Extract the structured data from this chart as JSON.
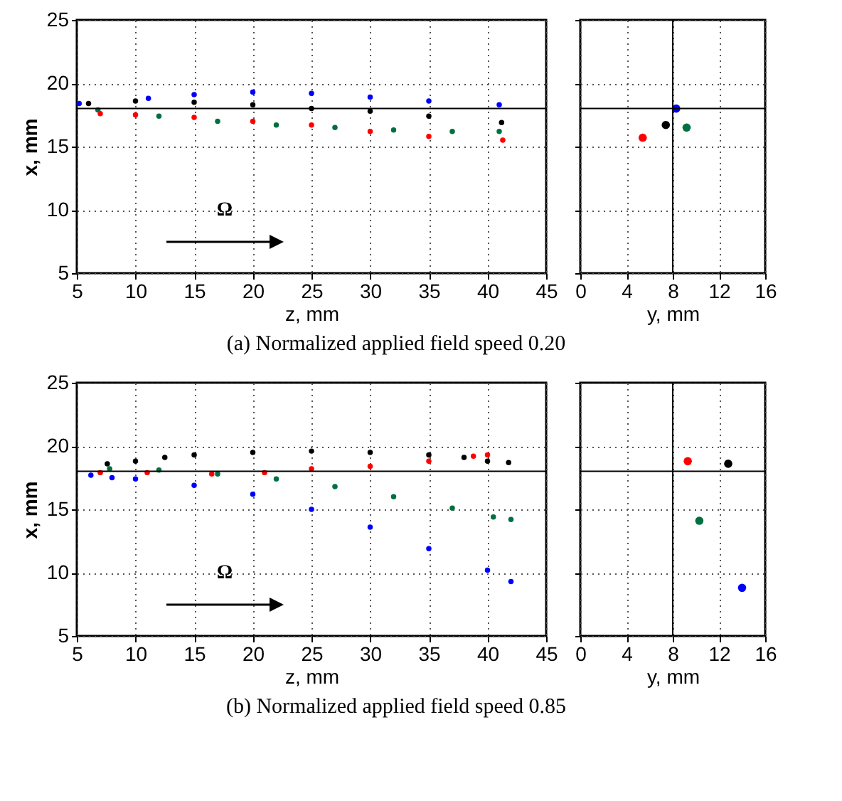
{
  "chart_data": [
    {
      "type": "scatter",
      "xlabel": "z, mm",
      "ylabel": "x, mm",
      "xlim": [
        5,
        45
      ],
      "ylim": [
        5,
        25
      ],
      "xticks": [
        5,
        10,
        15,
        20,
        25,
        30,
        35,
        40,
        45
      ],
      "yticks": [
        5,
        10,
        15,
        20,
        25
      ],
      "grid": true,
      "marker": "circle",
      "annotations": [
        "Ω",
        "(a)  Normalized applied field speed 0.20"
      ],
      "ref_lines": [
        {
          "axis": "y",
          "value": 18
        }
      ],
      "series": [
        {
          "color": "#0000ff",
          "x": [
            5.2,
            11.1,
            15,
            20,
            25,
            30,
            35,
            41
          ],
          "values": [
            18.4,
            18.8,
            19.1,
            19.3,
            19.2,
            18.9,
            18.6,
            18.3
          ]
        },
        {
          "color": "#000000",
          "x": [
            6,
            10,
            15,
            20,
            25,
            30,
            35,
            41.2
          ],
          "values": [
            18.4,
            18.6,
            18.5,
            18.3,
            18.0,
            17.8,
            17.4,
            16.9
          ]
        },
        {
          "color": "#007040",
          "x": [
            6.8,
            12,
            17,
            22,
            27,
            32,
            37,
            41
          ],
          "values": [
            17.9,
            17.4,
            17.0,
            16.7,
            16.5,
            16.3,
            16.2,
            16.2
          ]
        },
        {
          "color": "#ff0000",
          "x": [
            7,
            10,
            15,
            20,
            25,
            30,
            35,
            41.3
          ],
          "values": [
            17.6,
            17.5,
            17.3,
            17.0,
            16.7,
            16.2,
            15.8,
            15.5
          ]
        }
      ]
    },
    {
      "type": "scatter",
      "xlabel": "y, mm",
      "xlim": [
        0,
        16
      ],
      "ylim": [
        5,
        25
      ],
      "xticks": [
        0,
        4,
        8,
        12,
        16
      ],
      "yticks": [
        5,
        10,
        15,
        20,
        25
      ],
      "tick_labels": "x",
      "grid": true,
      "marker": "circle",
      "ref_lines": [
        {
          "axis": "y",
          "value": 18
        },
        {
          "axis": "x",
          "value": 8
        }
      ],
      "series": [
        {
          "color": "#0000ff",
          "x": [
            8.3
          ],
          "values": [
            18.0
          ]
        },
        {
          "color": "#000000",
          "x": [
            7.4
          ],
          "values": [
            16.7
          ]
        },
        {
          "color": "#007040",
          "x": [
            9.2
          ],
          "values": [
            16.5
          ]
        },
        {
          "color": "#ff0000",
          "x": [
            5.4
          ],
          "values": [
            15.7
          ]
        }
      ]
    },
    {
      "type": "scatter",
      "xlabel": "z, mm",
      "ylabel": "x, mm",
      "xlim": [
        5,
        45
      ],
      "ylim": [
        5,
        25
      ],
      "xticks": [
        5,
        10,
        15,
        20,
        25,
        30,
        35,
        40,
        45
      ],
      "yticks": [
        5,
        10,
        15,
        20,
        25
      ],
      "grid": true,
      "marker": "circle",
      "annotations": [
        "Ω",
        "(b)  Normalized applied field speed 0.85"
      ],
      "ref_lines": [
        {
          "axis": "y",
          "value": 18
        }
      ],
      "series": [
        {
          "color": "#000000",
          "x": [
            7.6,
            10,
            12.5,
            15,
            20,
            25,
            30,
            35,
            38,
            40,
            41.8
          ],
          "values": [
            18.6,
            18.8,
            19.1,
            19.3,
            19.5,
            19.6,
            19.5,
            19.3,
            19.1,
            18.8,
            18.7
          ]
        },
        {
          "color": "#ff0000",
          "x": [
            7,
            11,
            16.5,
            21,
            25,
            30,
            35,
            38.8,
            40
          ],
          "values": [
            17.9,
            17.9,
            17.8,
            17.9,
            18.2,
            18.4,
            18.8,
            19.2,
            19.3
          ]
        },
        {
          "color": "#007040",
          "x": [
            7.8,
            12,
            17,
            22,
            27,
            32,
            37,
            40.5,
            42
          ],
          "values": [
            18.2,
            18.1,
            17.8,
            17.4,
            16.8,
            16.0,
            15.1,
            14.4,
            14.2
          ]
        },
        {
          "color": "#0000ff",
          "x": [
            6.2,
            8,
            10,
            15,
            20,
            25,
            30,
            35,
            40,
            42
          ],
          "values": [
            17.7,
            17.5,
            17.4,
            16.9,
            16.2,
            15.0,
            13.6,
            11.9,
            10.2,
            9.3
          ]
        }
      ]
    },
    {
      "type": "scatter",
      "xlabel": "y, mm",
      "xlim": [
        0,
        16
      ],
      "ylim": [
        5,
        25
      ],
      "xticks": [
        0,
        4,
        8,
        12,
        16
      ],
      "yticks": [
        5,
        10,
        15,
        20,
        25
      ],
      "tick_labels": "x",
      "grid": true,
      "marker": "circle",
      "ref_lines": [
        {
          "axis": "y",
          "value": 18
        },
        {
          "axis": "x",
          "value": 8
        }
      ],
      "series": [
        {
          "color": "#ff0000",
          "x": [
            9.3
          ],
          "values": [
            18.8
          ]
        },
        {
          "color": "#000000",
          "x": [
            12.8
          ],
          "values": [
            18.6
          ]
        },
        {
          "color": "#007040",
          "x": [
            10.3
          ],
          "values": [
            14.1
          ]
        },
        {
          "color": "#0000ff",
          "x": [
            14.0
          ],
          "values": [
            8.8
          ]
        }
      ]
    }
  ]
}
